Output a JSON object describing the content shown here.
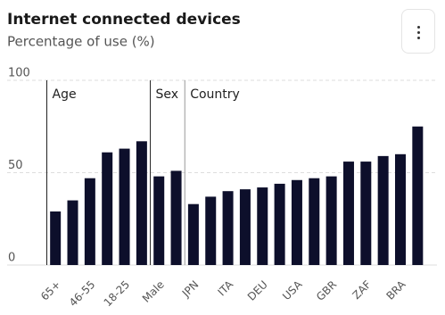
{
  "chart_data": {
    "type": "bar",
    "title": "Internet connected devices",
    "subtitle": "Percentage of use (%)",
    "categories": [
      "65+",
      null,
      "46-55",
      null,
      "18-25",
      null,
      "Male",
      null,
      "JPN",
      null,
      "ITA",
      null,
      "DEU",
      null,
      "USA",
      null,
      "GBR",
      null,
      "ZAF",
      null,
      "BRA",
      null
    ],
    "values": [
      29,
      35,
      47,
      61,
      63,
      67,
      48,
      51,
      33,
      37,
      40,
      41,
      42,
      44,
      46,
      47,
      48,
      56,
      56,
      59,
      60,
      75
    ],
    "color": "#0d0f2b",
    "groups": [
      {
        "label": "Age",
        "size": 6
      },
      {
        "label": "Sex",
        "size": 2
      },
      {
        "label": "Country",
        "size": 14
      }
    ],
    "ylim": [
      0,
      100
    ],
    "yticks": [
      0,
      50,
      100
    ],
    "grid": true
  }
}
